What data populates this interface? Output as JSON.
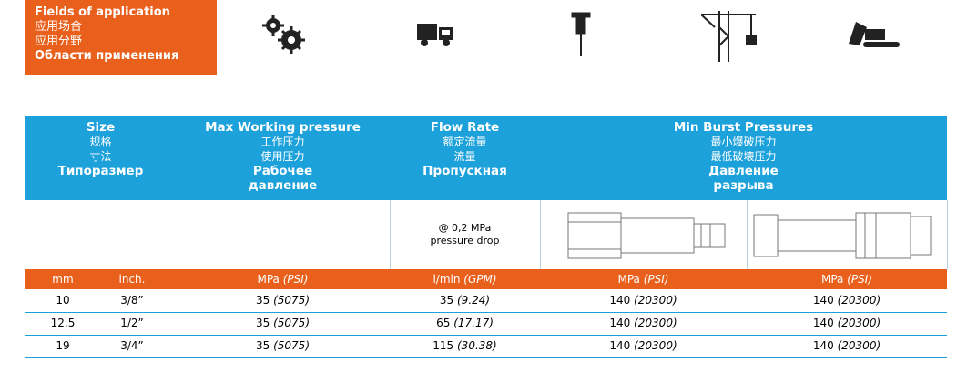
{
  "application": {
    "lines": [
      "Fields of application",
      "应用场合",
      "应用分野",
      "Области применения"
    ]
  },
  "table": {
    "headers": [
      {
        "en": "Size",
        "zh": [
          "规格",
          "寸法"
        ],
        "ru": [
          "Типоразмер"
        ]
      },
      {
        "en": "Max Working pressure",
        "zh": [
          "工作压力",
          "使用压力"
        ],
        "ru": [
          "Рабочее",
          "давление"
        ]
      },
      {
        "en": "Flow Rate",
        "zh": [
          "额定流量",
          "流量"
        ],
        "ru": [
          "Пропускная"
        ]
      },
      {
        "en": "Min Burst Pressures",
        "zh": [
          "最小爆破压力",
          "最低破壊压力"
        ],
        "ru": [
          "Давление",
          "разрыва"
        ]
      }
    ],
    "flow_note": [
      "@ 0,2 MPa",
      "pressure drop"
    ],
    "units": [
      "mm",
      "inch.",
      [
        "MPa",
        "(PSI)"
      ],
      [
        "l/min",
        "(GPM)"
      ],
      [
        "MPa",
        "(PSI)"
      ],
      [
        "MPa",
        "(PSI)"
      ]
    ],
    "rows": [
      [
        "10",
        "3/8”",
        [
          "35",
          "(5075)"
        ],
        [
          "35",
          "(9.24)"
        ],
        [
          "140",
          "(20300)"
        ],
        [
          "140",
          "(20300)"
        ]
      ],
      [
        "12.5",
        "1/2”",
        [
          "35",
          "(5075)"
        ],
        [
          "65",
          "(17.17)"
        ],
        [
          "140",
          "(20300)"
        ],
        [
          "140",
          "(20300)"
        ]
      ],
      [
        "19",
        "3/4”",
        [
          "35",
          "(5075)"
        ],
        [
          "115",
          "(30.38)"
        ],
        [
          "140",
          "(20300)"
        ],
        [
          "140",
          "(20300)"
        ]
      ]
    ]
  }
}
